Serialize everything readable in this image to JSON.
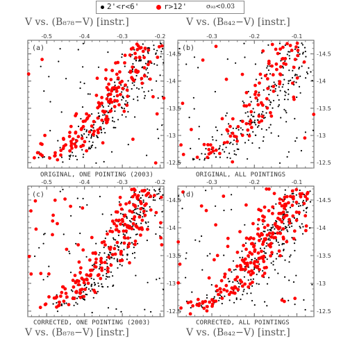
{
  "legend": {
    "item1": "2'<r<6'",
    "item2": "r>12'",
    "item3": "σ₉₃<0.03"
  },
  "top_titles": {
    "left": "V vs. (B₈₇₈−V) [instr.]",
    "right": "V vs. (B₈₄₂−V) [instr.]"
  },
  "bottom_titles": {
    "left": "V vs. (B₈₇₈−V) [instr.]",
    "right": "V vs. (B₈₄₂−V) [instr.]"
  },
  "colors": {
    "inner": "#000000",
    "outer": "#ff0000"
  },
  "chart_data": [
    {
      "type": "scatter",
      "panel_label": "(a)",
      "caption": "ORIGINAL, ONE POINTING (2003)",
      "xlim": [
        -0.55,
        -0.19
      ],
      "ylim": [
        -12.4,
        -14.75
      ],
      "x_ticks": [
        -0.5,
        -0.4,
        -0.3,
        -0.2
      ],
      "y_ticks": [
        -12.5,
        -13,
        -13.5,
        -14,
        -14.5
      ],
      "y_axis_side": "right",
      "series": [
        {
          "name": "2'<r<6'",
          "color": "#000000",
          "n": 260,
          "seed": 11,
          "type": "inner"
        },
        {
          "name": "r>12'",
          "color": "#ff0000",
          "n": 170,
          "seed": 21,
          "type": "outer"
        }
      ]
    },
    {
      "type": "scatter",
      "panel_label": "(b)",
      "caption": "ORIGINAL, ALL POINTINGS",
      "xlim": [
        -0.38,
        -0.06
      ],
      "ylim": [
        -12.4,
        -14.75
      ],
      "x_ticks": [
        -0.3,
        -0.2,
        -0.1
      ],
      "y_ticks": [
        -12.5,
        -13,
        -13.5,
        -14,
        -14.5
      ],
      "y_axis_side": "right",
      "series": [
        {
          "name": "2'<r<6'",
          "color": "#000000",
          "n": 260,
          "seed": 31,
          "type": "inner"
        },
        {
          "name": "r>12'",
          "color": "#ff0000",
          "n": 110,
          "seed": 41,
          "type": "outer"
        }
      ]
    },
    {
      "type": "scatter",
      "panel_label": "(c)",
      "caption": "CORRECTED, ONE POINTING (2003)",
      "xlim": [
        -0.55,
        -0.19
      ],
      "ylim": [
        -12.4,
        -14.75
      ],
      "x_ticks": [
        -0.5,
        -0.4,
        -0.3,
        -0.2
      ],
      "y_ticks": [
        -12.5,
        -13,
        -13.5,
        -14,
        -14.5
      ],
      "y_axis_side": "right",
      "series": [
        {
          "name": "2'<r<6'",
          "color": "#000000",
          "n": 300,
          "seed": 51,
          "type": "inner"
        },
        {
          "name": "r>12'",
          "color": "#ff0000",
          "n": 200,
          "seed": 61,
          "type": "outer"
        }
      ]
    },
    {
      "type": "scatter",
      "panel_label": "(d)",
      "caption": "CORRECTED, ALL POINTINGS",
      "xlim": [
        -0.38,
        -0.06
      ],
      "ylim": [
        -12.4,
        -14.75
      ],
      "x_ticks": [
        -0.3,
        -0.2,
        -0.1
      ],
      "y_ticks": [
        -12.5,
        -13,
        -13.5,
        -14,
        -14.5
      ],
      "y_axis_side": "right",
      "series": [
        {
          "name": "2'<r<6'",
          "color": "#000000",
          "n": 280,
          "seed": 71,
          "type": "inner"
        },
        {
          "name": "r>12'",
          "color": "#ff0000",
          "n": 230,
          "seed": 81,
          "type": "outer"
        }
      ]
    }
  ]
}
